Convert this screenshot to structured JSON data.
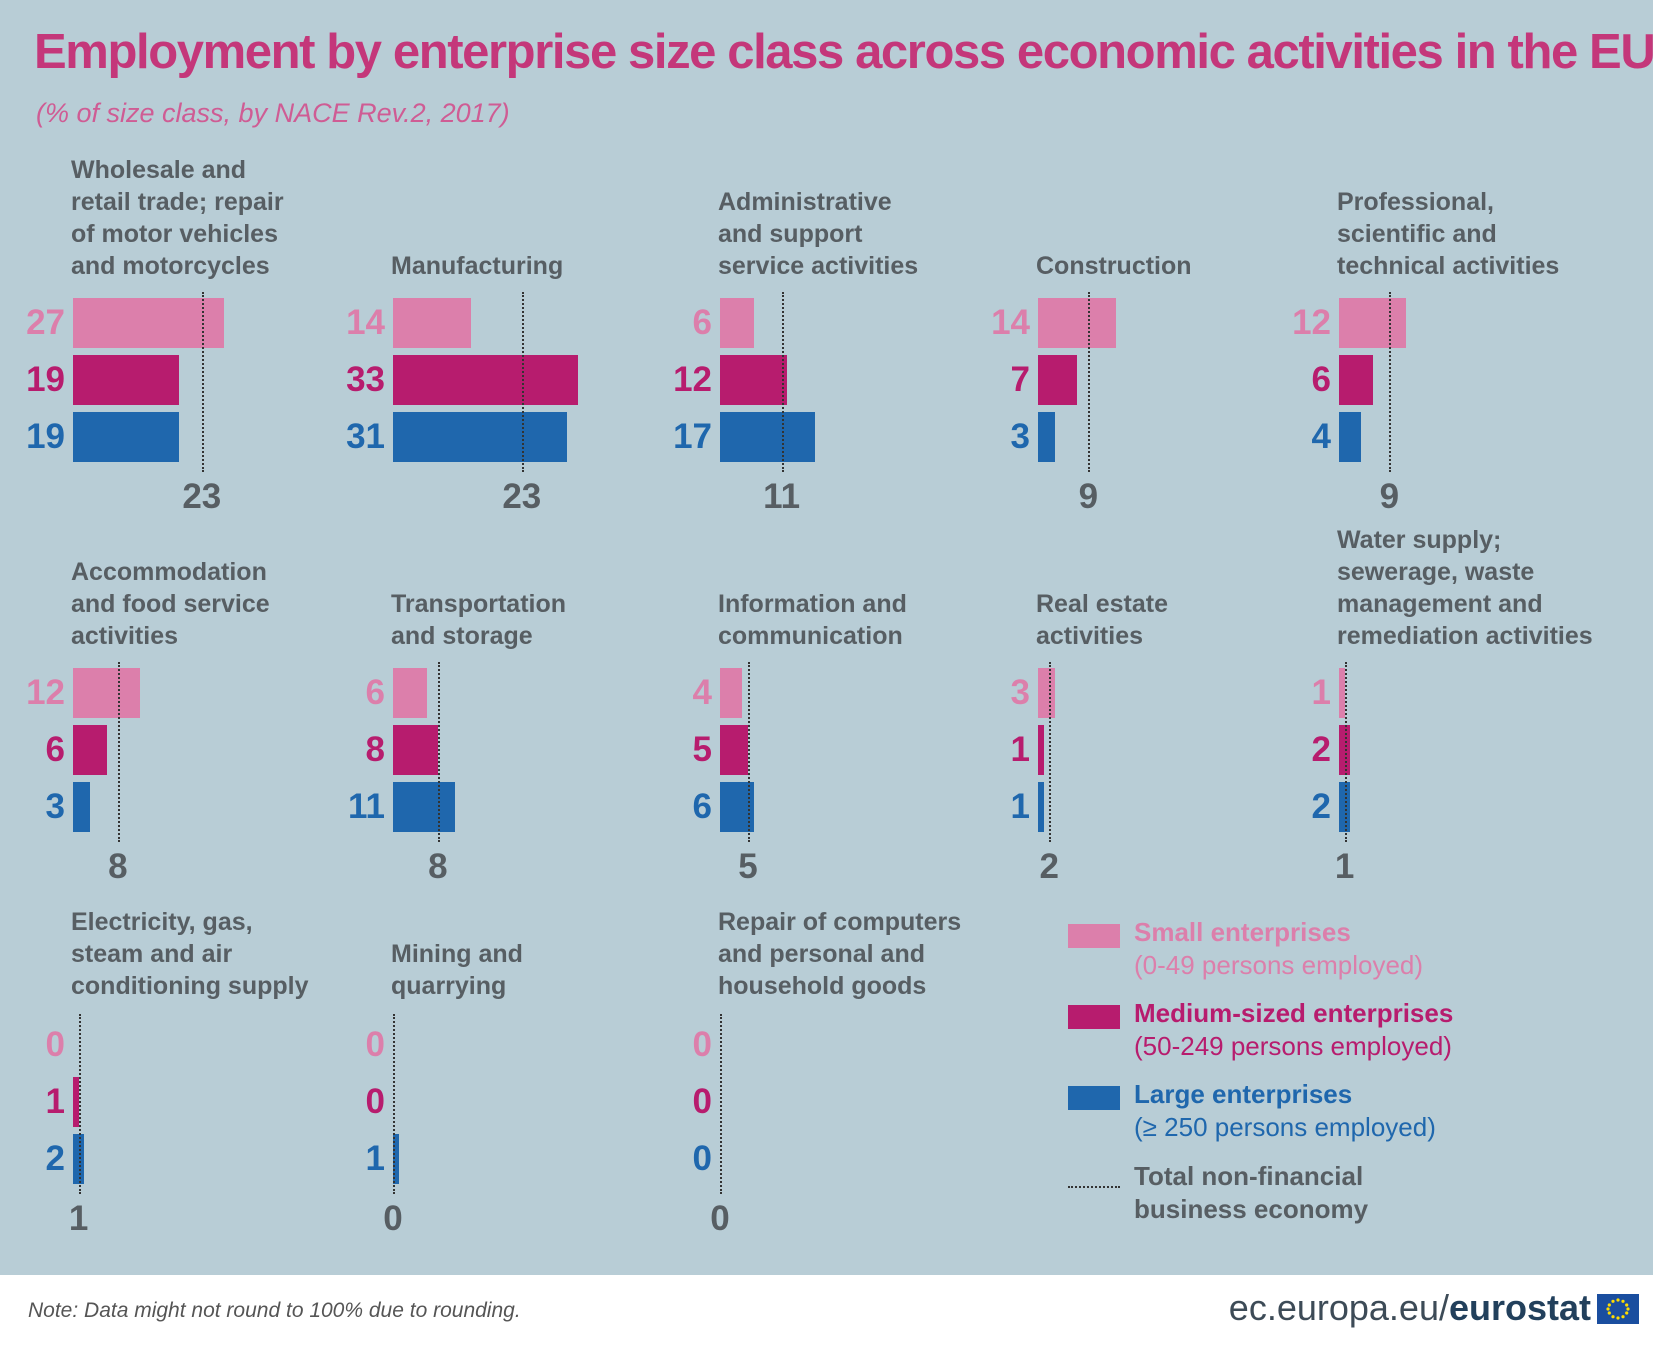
{
  "title": "Employment by enterprise size class across economic activities in the EU",
  "subtitle": "(% of size class, by NACE Rev.2, 2017)",
  "colors": {
    "small": "#dc7fab",
    "medium": "#b71c6e",
    "large": "#1f67ad",
    "total_line": "#333333",
    "text_gray": "#575e63",
    "background": "#b8cdd6"
  },
  "legend": {
    "small": {
      "name": "Small enterprises",
      "sub": "(0-49 persons employed)"
    },
    "medium": {
      "name": "Medium-sized enterprises",
      "sub": "(50-249 persons employed)"
    },
    "large": {
      "name": "Large enterprises",
      "sub": "(≥ 250 persons employed)"
    },
    "total": "Total non-financial\nbusiness economy"
  },
  "footer": {
    "note": "Note: Data might not round to 100% due to rounding.",
    "brand_domain": "ec.europa.eu/",
    "brand_name": "eurostat"
  },
  "chart_data": {
    "type": "bar",
    "orientation": "horizontal",
    "series": [
      "Small enterprises",
      "Medium-sized enterprises",
      "Large enterprises",
      "Total non-financial business economy"
    ],
    "panels": [
      {
        "name": "Wholesale and\nretail trade; repair\nof motor vehicles\nand motorcycles",
        "small": 27,
        "medium": 19,
        "large": 19,
        "total": 23
      },
      {
        "name": "Manufacturing",
        "small": 14,
        "medium": 33,
        "large": 31,
        "total": 23
      },
      {
        "name": "Administrative\nand support\nservice activities",
        "small": 6,
        "medium": 12,
        "large": 17,
        "total": 11
      },
      {
        "name": "Construction",
        "small": 14,
        "medium": 7,
        "large": 3,
        "total": 9
      },
      {
        "name": "Professional,\nscientific and\ntechnical activities",
        "small": 12,
        "medium": 6,
        "large": 4,
        "total": 9
      },
      {
        "name": "Accommodation\nand food service\nactivities",
        "small": 12,
        "medium": 6,
        "large": 3,
        "total": 8
      },
      {
        "name": "Transportation\nand storage",
        "small": 6,
        "medium": 8,
        "large": 11,
        "total": 8
      },
      {
        "name": "Information and\ncommunication",
        "small": 4,
        "medium": 5,
        "large": 6,
        "total": 5
      },
      {
        "name": "Real estate\nactivities",
        "small": 3,
        "medium": 1,
        "large": 1,
        "total": 2
      },
      {
        "name": "Water supply;\nsewerage, waste\nmanagement and\nremediation activities",
        "small": 1,
        "medium": 2,
        "large": 2,
        "total": 1
      },
      {
        "name": "Electricity, gas,\nsteam and air\nconditioning supply",
        "small": 0,
        "medium": 1,
        "large": 2,
        "total": 1
      },
      {
        "name": "Mining and\nquarrying",
        "small": 0,
        "medium": 0,
        "large": 1,
        "total": 0
      },
      {
        "name": "Repair of computers\nand personal and\nhousehold goods",
        "small": 0,
        "medium": 0,
        "large": 0,
        "total": 0
      }
    ]
  }
}
